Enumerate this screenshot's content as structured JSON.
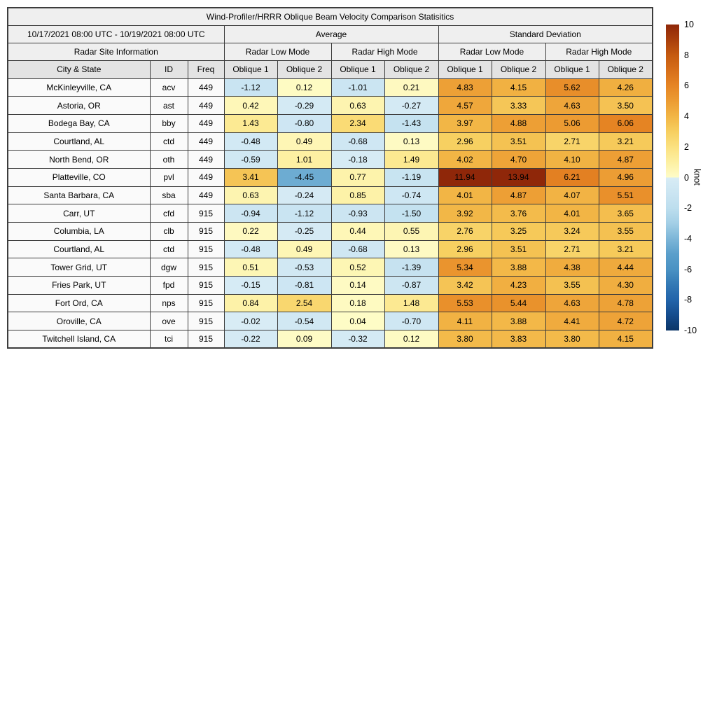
{
  "header": {
    "title": "Wind-Profiler/HRRR Oblique Beam Velocity Comparison Statisitics",
    "date_range": "10/17/2021 08:00 UTC - 10/19/2021 08:00 UTC",
    "average_label": "Average",
    "std_label": "Standard Deviation",
    "site_info_label": "Radar Site Information",
    "low_mode_label": "Radar Low Mode",
    "high_mode_label": "Radar High Mode",
    "city_label": "City & State",
    "id_label": "ID",
    "freq_label": "Freq",
    "oblique1_label": "Oblique 1",
    "oblique2_label": "Oblique 2"
  },
  "chart_data": {
    "type": "table",
    "title": "Wind-Profiler/HRRR Oblique Beam Velocity Comparison Statisitics",
    "date_range": "10/17/2021 08:00 UTC - 10/19/2021 08:00 UTC",
    "column_groups": [
      "Radar Site Information",
      "Average Radar Low Mode",
      "Average Radar High Mode",
      "Standard Deviation Radar Low Mode",
      "Standard Deviation Radar High Mode"
    ],
    "columns": [
      "City & State",
      "ID",
      "Freq",
      "Avg Low Oblique 1",
      "Avg Low Oblique 2",
      "Avg High Oblique 1",
      "Avg High Oblique 2",
      "SD Low Oblique 1",
      "SD Low Oblique 2",
      "SD High Oblique 1",
      "SD High Oblique 2"
    ],
    "rows": [
      {
        "city": "McKinleyville, CA",
        "id": "acv",
        "freq": "449",
        "values": [
          "-1.12",
          "0.12",
          "-1.01",
          "0.21",
          "4.83",
          "4.15",
          "5.62",
          "4.26"
        ]
      },
      {
        "city": "Astoria, OR",
        "id": "ast",
        "freq": "449",
        "values": [
          "0.42",
          "-0.29",
          "0.63",
          "-0.27",
          "4.57",
          "3.33",
          "4.63",
          "3.50"
        ]
      },
      {
        "city": "Bodega Bay, CA",
        "id": "bby",
        "freq": "449",
        "values": [
          "1.43",
          "-0.80",
          "2.34",
          "-1.43",
          "3.97",
          "4.88",
          "5.06",
          "6.06"
        ]
      },
      {
        "city": "Courtland, AL",
        "id": "ctd",
        "freq": "449",
        "values": [
          "-0.48",
          "0.49",
          "-0.68",
          "0.13",
          "2.96",
          "3.51",
          "2.71",
          "3.21"
        ]
      },
      {
        "city": "North Bend, OR",
        "id": "oth",
        "freq": "449",
        "values": [
          "-0.59",
          "1.01",
          "-0.18",
          "1.49",
          "4.02",
          "4.70",
          "4.10",
          "4.87"
        ]
      },
      {
        "city": "Platteville, CO",
        "id": "pvl",
        "freq": "449",
        "values": [
          "3.41",
          "-4.45",
          "0.77",
          "-1.19",
          "11.94",
          "13.94",
          "6.21",
          "4.96"
        ]
      },
      {
        "city": "Santa Barbara, CA",
        "id": "sba",
        "freq": "449",
        "values": [
          "0.63",
          "-0.24",
          "0.85",
          "-0.74",
          "4.01",
          "4.87",
          "4.07",
          "5.51"
        ]
      },
      {
        "city": "Carr, UT",
        "id": "cfd",
        "freq": "915",
        "values": [
          "-0.94",
          "-1.12",
          "-0.93",
          "-1.50",
          "3.92",
          "3.76",
          "4.01",
          "3.65"
        ]
      },
      {
        "city": "Columbia, LA",
        "id": "clb",
        "freq": "915",
        "values": [
          "0.22",
          "-0.25",
          "0.44",
          "0.55",
          "2.76",
          "3.25",
          "3.24",
          "3.55"
        ]
      },
      {
        "city": "Courtland, AL",
        "id": "ctd",
        "freq": "915",
        "values": [
          "-0.48",
          "0.49",
          "-0.68",
          "0.13",
          "2.96",
          "3.51",
          "2.71",
          "3.21"
        ]
      },
      {
        "city": "Tower Grid, UT",
        "id": "dgw",
        "freq": "915",
        "values": [
          "0.51",
          "-0.53",
          "0.52",
          "-1.39",
          "5.34",
          "3.88",
          "4.38",
          "4.44"
        ]
      },
      {
        "city": "Fries Park, UT",
        "id": "fpd",
        "freq": "915",
        "values": [
          "-0.15",
          "-0.81",
          "0.14",
          "-0.87",
          "3.42",
          "4.23",
          "3.55",
          "4.30"
        ]
      },
      {
        "city": "Fort Ord, CA",
        "id": "nps",
        "freq": "915",
        "values": [
          "0.84",
          "2.54",
          "0.18",
          "1.48",
          "5.53",
          "5.44",
          "4.63",
          "4.78"
        ]
      },
      {
        "city": "Oroville, CA",
        "id": "ove",
        "freq": "915",
        "values": [
          "-0.02",
          "-0.54",
          "0.04",
          "-0.70",
          "4.11",
          "3.88",
          "4.41",
          "4.72"
        ]
      },
      {
        "city": "Twitchell Island, CA",
        "id": "tci",
        "freq": "915",
        "values": [
          "-0.22",
          "0.09",
          "-0.32",
          "0.12",
          "3.80",
          "3.83",
          "3.80",
          "4.15"
        ]
      }
    ],
    "colorbar": {
      "unit": "knot",
      "vmin": -10,
      "vmax": 10,
      "ticks": [
        10,
        8,
        6,
        4,
        2,
        0,
        -2,
        -4,
        -6,
        -8,
        -10
      ]
    }
  },
  "colors": {
    "positive_stops": [
      "#fefcc8",
      "#fdf0a2",
      "#fbe180",
      "#f7cf60",
      "#f2b545",
      "#ec9c33",
      "#e68524",
      "#d76f1a",
      "#c55a10",
      "#a93f0c",
      "#8f2709"
    ],
    "negative_stops": [
      "#d8ecf5",
      "#cbe5f2",
      "#bddeee",
      "#a3cfe6",
      "#7db6d8",
      "#5a9fcb",
      "#4a92c3",
      "#3379b5",
      "#2264aa",
      "#154c8d",
      "#0b3567"
    ],
    "header_bg": "#efefef",
    "subheader_bg": "#e3e3e3",
    "label_cell_bg": "#fafafa",
    "border": "#3c3c3c"
  }
}
